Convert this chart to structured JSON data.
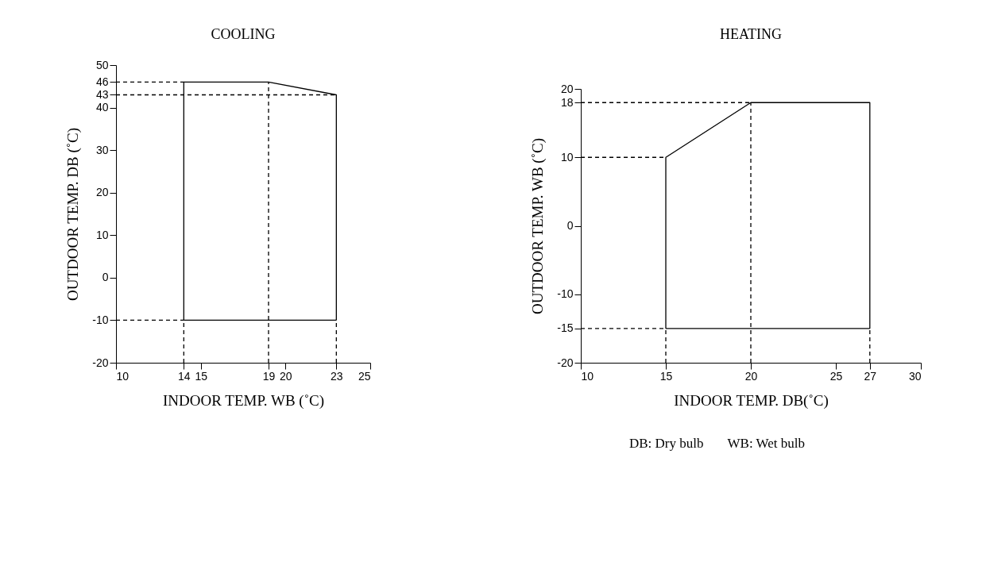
{
  "chart_data": [
    {
      "type": "line",
      "title": "COOLING",
      "xlabel": "INDOOR TEMP. WB (˚C)",
      "ylabel": "OUTDOOR TEMP. DB (˚C)",
      "xlim": [
        10,
        25
      ],
      "ylim": [
        -20,
        50
      ],
      "xticks": [
        10,
        14,
        15,
        19,
        20,
        23,
        25
      ],
      "yticks": [
        -20,
        -10,
        0,
        10,
        20,
        30,
        40,
        43,
        46,
        50
      ],
      "series": [
        {
          "color": "#000000",
          "line_style": "solid",
          "x": [
            14,
            14,
            19,
            23,
            23
          ],
          "values": [
            -10,
            46,
            46,
            43,
            -10
          ]
        },
        {
          "color": "#000000",
          "line_style": "solid",
          "x": [
            14,
            23
          ],
          "values": [
            -10,
            -10
          ]
        },
        {
          "color": "#000000",
          "line_style": "dashed",
          "x": [
            10,
            14
          ],
          "values": [
            46,
            46
          ]
        },
        {
          "color": "#000000",
          "line_style": "dashed",
          "x": [
            10,
            23
          ],
          "values": [
            43,
            43
          ]
        },
        {
          "color": "#000000",
          "line_style": "dashed",
          "x": [
            10,
            14
          ],
          "values": [
            -10,
            -10
          ]
        },
        {
          "color": "#000000",
          "line_style": "dashed",
          "x": [
            14,
            14
          ],
          "values": [
            -20,
            -10
          ]
        },
        {
          "color": "#000000",
          "line_style": "dashed",
          "x": [
            19,
            19
          ],
          "values": [
            -20,
            46
          ]
        },
        {
          "color": "#000000",
          "line_style": "dashed",
          "x": [
            23,
            23
          ],
          "values": [
            -20,
            -10
          ]
        }
      ]
    },
    {
      "type": "line",
      "title": "HEATING",
      "xlabel": "INDOOR TEMP. DB(˚C)",
      "ylabel": "OUTDOOR TEMP. WB (˚C)",
      "xlim": [
        10,
        30
      ],
      "ylim": [
        -20,
        20
      ],
      "xticks": [
        10,
        15,
        20,
        25,
        27,
        30
      ],
      "yticks": [
        -20,
        -15,
        -10,
        0,
        10,
        18,
        20
      ],
      "annotations": [
        "DB: Dry bulb",
        "WB: Wet bulb"
      ],
      "series": [
        {
          "color": "#000000",
          "line_style": "solid",
          "x": [
            15,
            15,
            20,
            27,
            27
          ],
          "values": [
            -15,
            10,
            18,
            18,
            -15
          ]
        },
        {
          "color": "#000000",
          "line_style": "solid",
          "x": [
            15,
            27
          ],
          "values": [
            -15,
            -15
          ]
        },
        {
          "color": "#000000",
          "line_style": "dashed",
          "x": [
            10,
            20
          ],
          "values": [
            18,
            18
          ]
        },
        {
          "color": "#000000",
          "line_style": "dashed",
          "x": [
            10,
            15
          ],
          "values": [
            10,
            10
          ]
        },
        {
          "color": "#000000",
          "line_style": "dashed",
          "x": [
            10,
            15
          ],
          "values": [
            -15,
            -15
          ]
        },
        {
          "color": "#000000",
          "line_style": "dashed",
          "x": [
            15,
            15
          ],
          "values": [
            -20,
            -15
          ]
        },
        {
          "color": "#000000",
          "line_style": "dashed",
          "x": [
            20,
            20
          ],
          "values": [
            -20,
            18
          ]
        },
        {
          "color": "#000000",
          "line_style": "dashed",
          "x": [
            27,
            27
          ],
          "values": [
            -20,
            -15
          ]
        }
      ]
    }
  ]
}
